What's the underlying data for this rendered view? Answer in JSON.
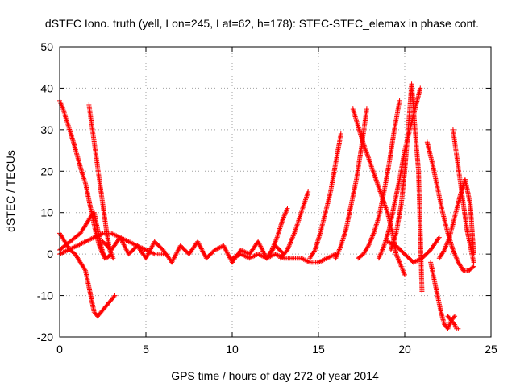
{
  "chart_data": {
    "type": "scatter",
    "title": "dSTEC Iono. truth (yell, Lon=245, Lat=62, h=178): STEC-STEC_elemax in phase cont.",
    "xlabel": "GPS time / hours of day 272 of year 2014",
    "ylabel": "dSTEC  / TECUs",
    "xlim": [
      0,
      25
    ],
    "ylim": [
      -20,
      50
    ],
    "xticks": [
      "0",
      "5",
      "10",
      "15",
      "20",
      "25"
    ],
    "yticks": [
      "-20",
      "-10",
      "0",
      "10",
      "20",
      "30",
      "40",
      "50"
    ],
    "grid": true,
    "marker": "plus",
    "color": "#ff0000",
    "series": [
      {
        "x": [
          0.0,
          0.2,
          0.5,
          0.8,
          1.0,
          1.2,
          1.5,
          1.7,
          1.9,
          2.1,
          2.3,
          2.5,
          2.7,
          3.0
        ],
        "y": [
          37,
          35,
          31,
          27,
          24,
          21,
          17,
          13,
          9,
          5,
          2,
          0,
          -1,
          0
        ]
      },
      {
        "x": [
          1.7,
          1.9,
          2.1,
          2.3,
          2.5,
          2.7,
          2.9,
          3.1
        ],
        "y": [
          36,
          30,
          24,
          18,
          12,
          6,
          1,
          -1
        ]
      },
      {
        "x": [
          0.0,
          0.3,
          0.6,
          0.9,
          1.2,
          1.5,
          1.7,
          1.9,
          2.0,
          2.2,
          2.4,
          2.6,
          2.8,
          3.0,
          3.2
        ],
        "y": [
          5,
          3,
          1,
          0,
          -2,
          -4,
          -8,
          -12,
          -14,
          -15,
          -14,
          -13,
          -12,
          -11,
          -10
        ]
      },
      {
        "x": [
          0.0,
          0.3,
          0.6,
          0.9,
          1.2,
          1.5,
          1.8,
          2.0,
          2.2,
          2.4,
          2.6
        ],
        "y": [
          1,
          2,
          3,
          4,
          5,
          7,
          9,
          10,
          6,
          2,
          -1
        ]
      },
      {
        "x": [
          0.0,
          0.5,
          1.0,
          1.5,
          2.0,
          2.5,
          3.0,
          3.5,
          4.0,
          4.5,
          5.0,
          5.5,
          6.0
        ],
        "y": [
          0,
          1,
          2,
          3,
          4,
          5,
          5,
          4,
          3,
          2,
          1,
          0,
          0
        ]
      },
      {
        "x": [
          2.5,
          3.0,
          3.5,
          4.0,
          4.5,
          5.0,
          5.5,
          6.0,
          6.5,
          7.0,
          7.5,
          8.0,
          8.5,
          9.0,
          9.5,
          10.0,
          10.5,
          11.0,
          11.5,
          12.0,
          12.5,
          13.0
        ],
        "y": [
          3,
          1,
          4,
          0,
          2,
          -1,
          3,
          1,
          -2,
          2,
          0,
          3,
          -1,
          1,
          2,
          -2,
          1,
          0,
          3,
          -1,
          2,
          0
        ]
      },
      {
        "x": [
          10.0,
          10.5,
          11.0,
          11.5,
          12.0,
          12.5,
          13.0,
          13.5,
          14.0,
          14.5,
          15.0,
          15.5,
          16.0
        ],
        "y": [
          -1,
          0,
          -1,
          0,
          -1,
          0,
          -1,
          -1,
          -1,
          -2,
          -2,
          -1,
          0
        ]
      },
      {
        "x": [
          12.0,
          12.3,
          12.6,
          12.9,
          13.2
        ],
        "y": [
          -1,
          1,
          4,
          8,
          11
        ]
      },
      {
        "x": [
          12.8,
          13.2,
          13.6,
          14.0,
          14.4
        ],
        "y": [
          -1,
          1,
          5,
          10,
          15
        ]
      },
      {
        "x": [
          14.5,
          14.8,
          15.1,
          15.4,
          15.7,
          16.0,
          16.3
        ],
        "y": [
          -1,
          1,
          5,
          10,
          15,
          22,
          29
        ]
      },
      {
        "x": [
          16.0,
          16.3,
          16.6,
          16.9,
          17.2,
          17.5,
          17.8
        ],
        "y": [
          -1,
          2,
          6,
          12,
          18,
          26,
          35
        ]
      },
      {
        "x": [
          17.3,
          17.6,
          17.9,
          18.2,
          18.5,
          18.8,
          19.1,
          19.4,
          19.7
        ],
        "y": [
          -1,
          0,
          2,
          5,
          9,
          15,
          22,
          30,
          37
        ]
      },
      {
        "x": [
          17.0,
          17.5,
          18.0,
          18.5,
          19.0,
          19.3,
          19.5,
          19.8,
          20.0
        ],
        "y": [
          35,
          28,
          22,
          16,
          10,
          5,
          0,
          -3,
          -5
        ]
      },
      {
        "x": [
          18.5,
          18.8,
          19.1,
          19.4,
          19.7,
          20.0,
          20.3,
          20.6,
          20.9
        ],
        "y": [
          -1,
          2,
          6,
          12,
          18,
          25,
          30,
          35,
          40
        ]
      },
      {
        "x": [
          19.2,
          19.5,
          19.8,
          20.0,
          20.2,
          20.4,
          20.6,
          20.8,
          21.0
        ],
        "y": [
          1,
          5,
          12,
          20,
          30,
          41,
          30,
          20,
          -9
        ]
      },
      {
        "x": [
          19.0,
          19.5,
          20.0,
          20.5,
          21.0,
          21.5,
          22.0
        ],
        "y": [
          3,
          2,
          0,
          -2,
          -1,
          1,
          4
        ]
      },
      {
        "x": [
          21.3,
          21.6,
          21.9,
          22.2,
          22.5,
          22.8,
          23.1,
          23.4,
          23.7,
          24.0
        ],
        "y": [
          27,
          22,
          16,
          10,
          5,
          1,
          -2,
          -4,
          -4,
          -3
        ]
      },
      {
        "x": [
          21.5,
          21.8,
          22.1,
          22.3,
          22.5,
          22.7,
          22.9
        ],
        "y": [
          -2,
          -8,
          -14,
          -17,
          -18,
          -16,
          -15
        ]
      },
      {
        "x": [
          22.0,
          22.3,
          22.6,
          22.9,
          23.2,
          23.5,
          23.8,
          24.0
        ],
        "y": [
          -1,
          1,
          4,
          9,
          14,
          18,
          12,
          0
        ]
      },
      {
        "x": [
          22.8,
          23.0,
          23.2,
          23.4,
          23.6,
          23.8,
          24.0
        ],
        "y": [
          30,
          24,
          18,
          12,
          6,
          2,
          -2
        ]
      },
      {
        "x": [
          22.5,
          22.7,
          22.9,
          23.0,
          23.1
        ],
        "y": [
          -15,
          -16,
          -17,
          -18,
          -18
        ]
      }
    ]
  }
}
